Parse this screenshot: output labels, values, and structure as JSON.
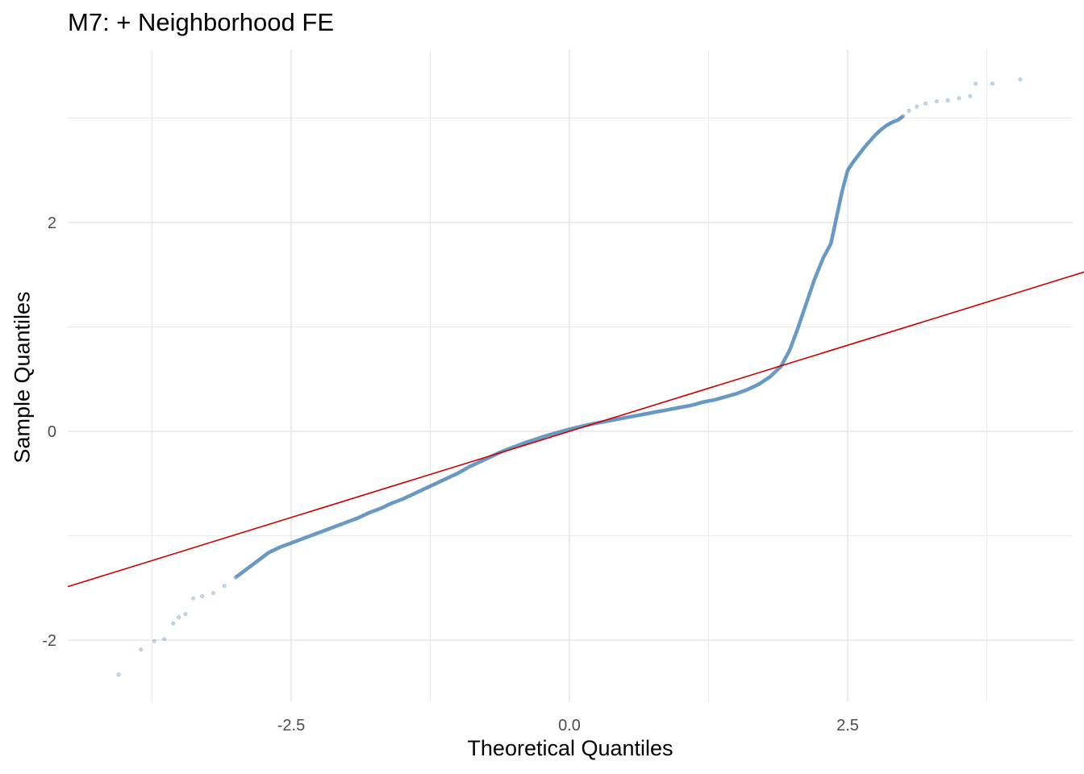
{
  "chart_data": {
    "type": "scatter",
    "title": "M7: + Neighborhood FE",
    "xlabel": "Theoretical Quantiles",
    "ylabel": "Sample Quantiles",
    "xlim": [
      -3.6,
      3.6
    ],
    "ylim": [
      -2.6,
      3.6
    ],
    "x_ticks": [
      -2.5,
      0.0,
      2.5
    ],
    "x_tick_labels": [
      "-2.5",
      "0.0",
      "2.5"
    ],
    "y_ticks": [
      -2,
      0,
      2
    ],
    "y_tick_labels": [
      "-2",
      "0",
      "2"
    ],
    "grid": true,
    "legend": "none",
    "series": [
      {
        "type": "scatter",
        "color": "#4682b4",
        "points": [
          [
            -4.05,
            -2.33
          ],
          [
            -3.85,
            -2.09
          ],
          [
            -3.73,
            -2.01
          ],
          [
            -3.64,
            -1.99
          ],
          [
            -3.56,
            -1.84
          ],
          [
            -3.51,
            -1.78
          ],
          [
            -3.45,
            -1.75
          ],
          [
            -3.38,
            -1.6
          ],
          [
            -3.3,
            -1.58
          ],
          [
            -3.2,
            -1.55
          ],
          [
            -3.1,
            -1.48
          ],
          [
            -3.0,
            -1.4
          ],
          [
            -2.9,
            -1.32
          ],
          [
            -2.8,
            -1.24
          ],
          [
            -2.7,
            -1.16
          ],
          [
            -2.6,
            -1.11
          ],
          [
            -2.5,
            -1.07
          ],
          [
            -2.4,
            -1.03
          ],
          [
            -2.3,
            -0.99
          ],
          [
            -2.2,
            -0.95
          ],
          [
            -2.1,
            -0.91
          ],
          [
            -2.0,
            -0.87
          ],
          [
            -1.9,
            -0.83
          ],
          [
            -1.8,
            -0.78
          ],
          [
            -1.7,
            -0.74
          ],
          [
            -1.6,
            -0.69
          ],
          [
            -1.5,
            -0.65
          ],
          [
            -1.4,
            -0.6
          ],
          [
            -1.3,
            -0.55
          ],
          [
            -1.2,
            -0.5
          ],
          [
            -1.1,
            -0.45
          ],
          [
            -1.0,
            -0.4
          ],
          [
            -0.9,
            -0.34
          ],
          [
            -0.8,
            -0.29
          ],
          [
            -0.7,
            -0.24
          ],
          [
            -0.6,
            -0.19
          ],
          [
            -0.5,
            -0.15
          ],
          [
            -0.4,
            -0.11
          ],
          [
            -0.3,
            -0.075
          ],
          [
            -0.2,
            -0.04
          ],
          [
            -0.1,
            -0.01
          ],
          [
            0.0,
            0.02
          ],
          [
            0.1,
            0.045
          ],
          [
            0.2,
            0.07
          ],
          [
            0.3,
            0.09
          ],
          [
            0.4,
            0.11
          ],
          [
            0.5,
            0.13
          ],
          [
            0.6,
            0.15
          ],
          [
            0.7,
            0.17
          ],
          [
            0.8,
            0.19
          ],
          [
            0.9,
            0.21
          ],
          [
            1.0,
            0.23
          ],
          [
            1.1,
            0.25
          ],
          [
            1.2,
            0.28
          ],
          [
            1.3,
            0.3
          ],
          [
            1.4,
            0.33
          ],
          [
            1.5,
            0.36
          ],
          [
            1.6,
            0.4
          ],
          [
            1.7,
            0.45
          ],
          [
            1.8,
            0.52
          ],
          [
            1.9,
            0.62
          ],
          [
            1.98,
            0.78
          ],
          [
            2.05,
            0.98
          ],
          [
            2.12,
            1.2
          ],
          [
            2.2,
            1.45
          ],
          [
            2.28,
            1.66
          ],
          [
            2.35,
            1.8
          ],
          [
            2.4,
            2.05
          ],
          [
            2.45,
            2.3
          ],
          [
            2.5,
            2.5
          ],
          [
            2.55,
            2.58
          ],
          [
            2.6,
            2.65
          ],
          [
            2.65,
            2.72
          ],
          [
            2.7,
            2.78
          ],
          [
            2.75,
            2.84
          ],
          [
            2.8,
            2.89
          ],
          [
            2.85,
            2.93
          ],
          [
            2.9,
            2.96
          ],
          [
            2.95,
            2.98
          ],
          [
            3.0,
            3.02
          ],
          [
            3.05,
            3.07
          ],
          [
            3.12,
            3.11
          ],
          [
            3.2,
            3.14
          ],
          [
            3.3,
            3.16
          ],
          [
            3.4,
            3.17
          ],
          [
            3.5,
            3.19
          ],
          [
            3.6,
            3.21
          ],
          [
            3.65,
            3.33
          ],
          [
            3.8,
            3.33
          ],
          [
            4.05,
            3.37
          ]
        ]
      },
      {
        "type": "line",
        "color": "#cc0000",
        "slope": 0.33,
        "intercept": 0.0
      }
    ]
  }
}
